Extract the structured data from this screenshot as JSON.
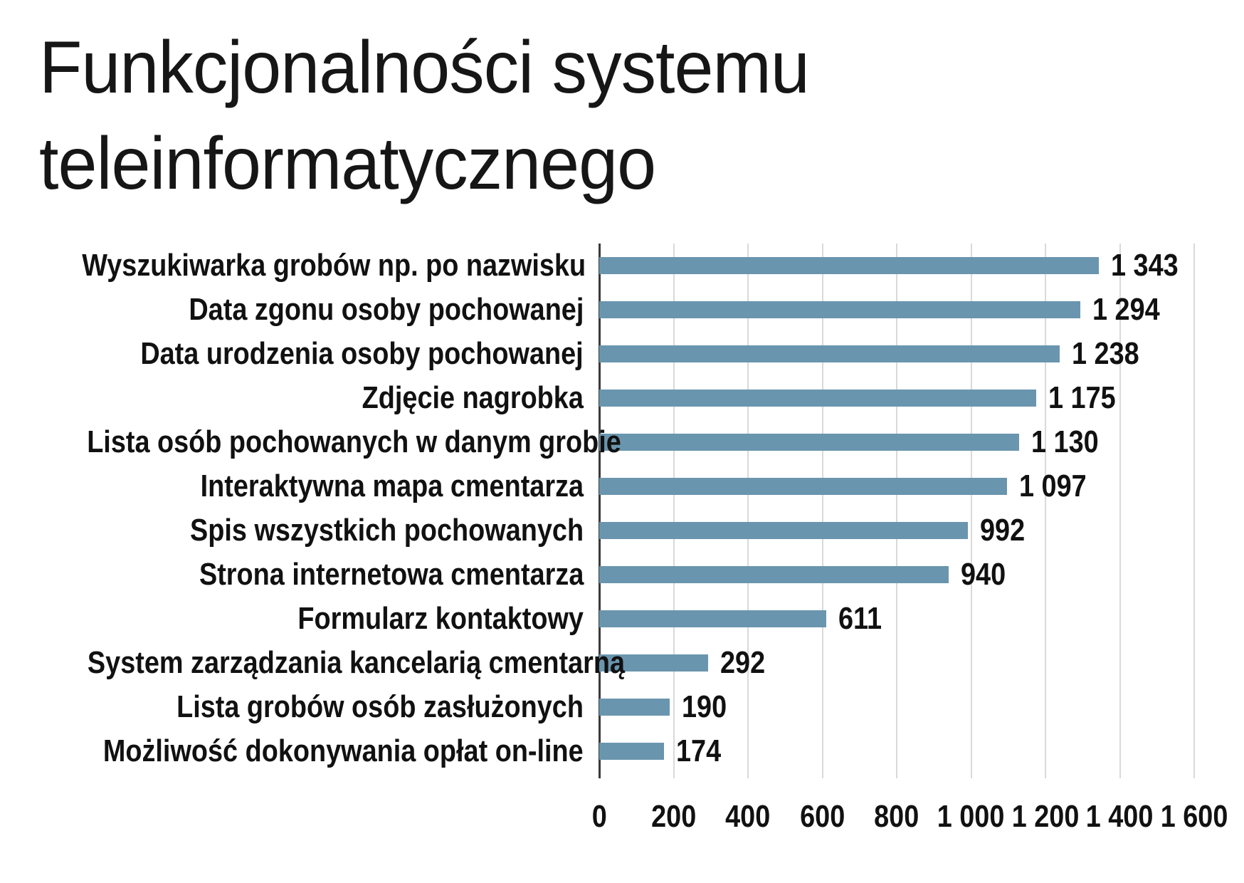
{
  "title": "Funkcjonalności systemu teleinformatycznego",
  "chart_data": {
    "type": "bar",
    "orientation": "horizontal",
    "title": "Funkcjonalności systemu teleinformatycznego",
    "categories": [
      "Wyszukiwarka grobów np. po nazwisku",
      "Data zgonu osoby pochowanej",
      "Data urodzenia osoby pochowanej",
      "Zdjęcie nagrobka",
      "Lista osób pochowanych w danym grobie",
      "Interaktywna mapa cmentarza",
      "Spis wszystkich pochowanych",
      "Strona internetowa cmentarza",
      "Formularz kontaktowy",
      "System zarządzania kancelarią cmentarną",
      "Lista grobów osób zasłużonych",
      "Możliwość dokonywania opłat on-line"
    ],
    "values": [
      1343,
      1294,
      1238,
      1175,
      1130,
      1097,
      992,
      940,
      611,
      292,
      190,
      174
    ],
    "value_labels": [
      "1 343",
      "1 294",
      "1 238",
      "1 175",
      "1 130",
      "1 097",
      "992",
      "940",
      "611",
      "292",
      "190",
      "174"
    ],
    "xlabel": "",
    "ylabel": "",
    "xlim": [
      0,
      1600
    ],
    "x_ticks": [
      0,
      200,
      400,
      600,
      800,
      1000,
      1200,
      1400,
      1600
    ],
    "x_tick_labels": [
      "0",
      "200",
      "400",
      "600",
      "800",
      "1 000",
      "1 200",
      "1 400",
      "1 600"
    ],
    "grid": true,
    "legend": false,
    "bar_color": "#6a95ae",
    "gridline_color": "#d9d9d9",
    "axis_line_color": "#3a3a3a",
    "text_color": "#111111",
    "background_color": "#ffffff"
  }
}
